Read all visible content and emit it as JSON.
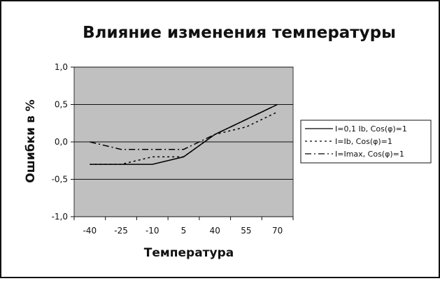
{
  "chart_data": {
    "type": "line",
    "title": "Влияние изменения температуры",
    "xlabel": "Температура",
    "ylabel": "Ошибки в %",
    "categories": [
      "-40",
      "-25",
      "-10",
      "5",
      "40",
      "55",
      "70"
    ],
    "yticks": [
      "1,0",
      "0,5",
      "0,0",
      "-0,5",
      "-1,0"
    ],
    "ylim": [
      -1.0,
      1.0
    ],
    "grid": true,
    "legend_position": "right",
    "plot_background": "#c0c0c0",
    "series": [
      {
        "name": "I=0,1 Ib, Cos(φ)=1",
        "values": [
          -0.3,
          -0.3,
          -0.3,
          -0.2,
          0.1,
          0.3,
          0.5
        ],
        "dash": "solid"
      },
      {
        "name": "I=Ib, Cos(φ)=1",
        "values": [
          -0.3,
          -0.3,
          -0.2,
          -0.2,
          0.1,
          0.2,
          0.4
        ],
        "dash": "dotted"
      },
      {
        "name": "I=Imax, Cos(φ)=1",
        "values": [
          0.0,
          -0.1,
          -0.1,
          -0.1,
          0.1,
          0.3,
          0.5
        ],
        "dash": "dashdot"
      }
    ]
  }
}
